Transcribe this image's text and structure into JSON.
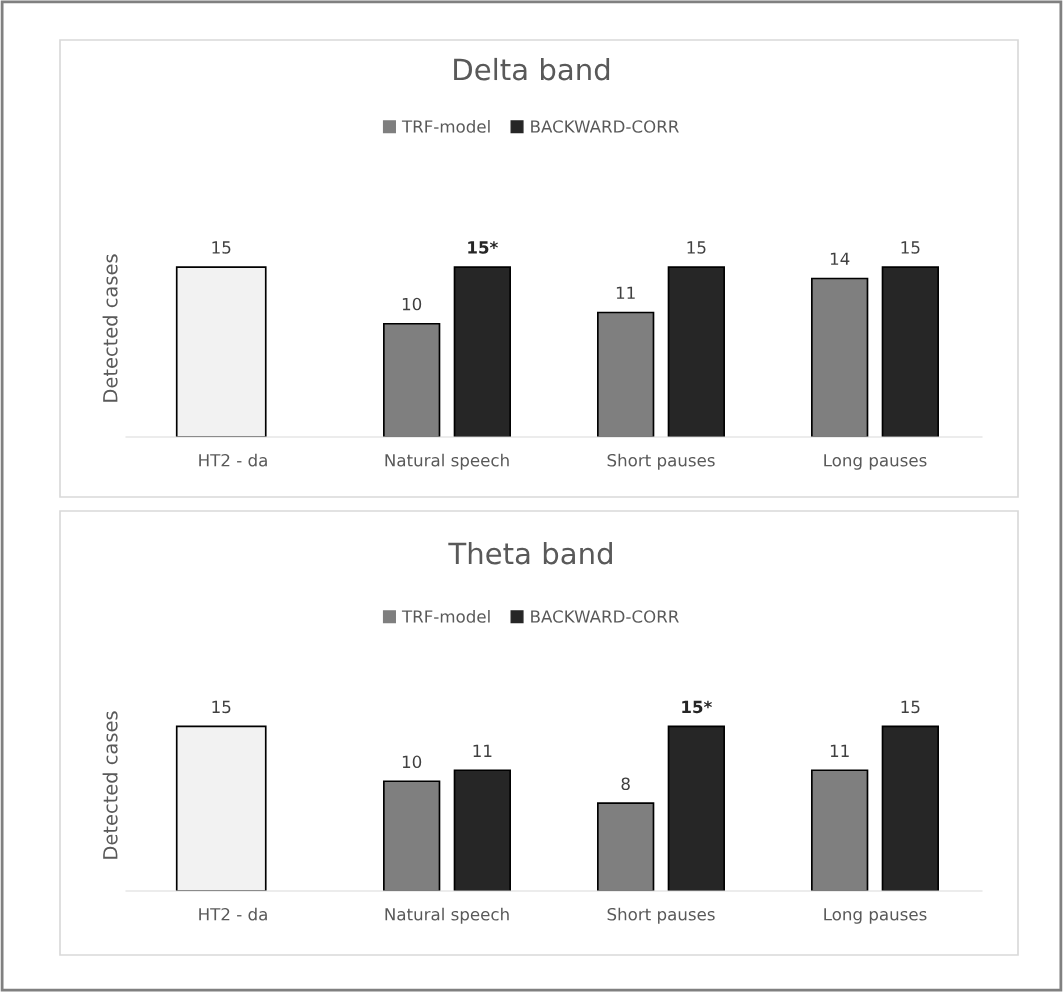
{
  "chart_data": [
    {
      "type": "bar",
      "title": "Delta band",
      "ylabel": "Detected cases",
      "categories": [
        "HT2 - da",
        "Natural speech",
        "Short pauses",
        "Long pauses"
      ],
      "legend": "top",
      "series": [
        {
          "color": "#f2f2f2",
          "values": [
            15,
            null,
            null,
            null
          ],
          "value_labels": [
            "15",
            null,
            null,
            null
          ]
        },
        {
          "name": "TRF-model",
          "color": "#7f7f7f",
          "values": [
            null,
            10,
            11,
            14
          ],
          "value_labels": [
            null,
            "10",
            "11",
            "14"
          ]
        },
        {
          "name": "BACKWARD-CORR",
          "color": "#262626",
          "values": [
            null,
            15,
            15,
            15
          ],
          "value_labels": [
            null,
            "15*",
            "15",
            "15"
          ]
        }
      ]
    },
    {
      "type": "bar",
      "title": "Theta band",
      "ylabel": "Detected cases",
      "categories": [
        "HT2 - da",
        "Natural speech",
        "Short pauses",
        "Long pauses"
      ],
      "legend": "top",
      "series": [
        {
          "color": "#f2f2f2",
          "values": [
            15,
            null,
            null,
            null
          ],
          "value_labels": [
            "15",
            null,
            null,
            null
          ]
        },
        {
          "name": "TRF-model",
          "color": "#7f7f7f",
          "values": [
            null,
            10,
            8,
            11
          ],
          "value_labels": [
            null,
            "10",
            "8",
            "11"
          ]
        },
        {
          "name": "BACKWARD-CORR",
          "color": "#262626",
          "values": [
            null,
            11,
            15,
            15
          ],
          "value_labels": [
            null,
            "11",
            "15*",
            "15"
          ]
        }
      ]
    }
  ]
}
